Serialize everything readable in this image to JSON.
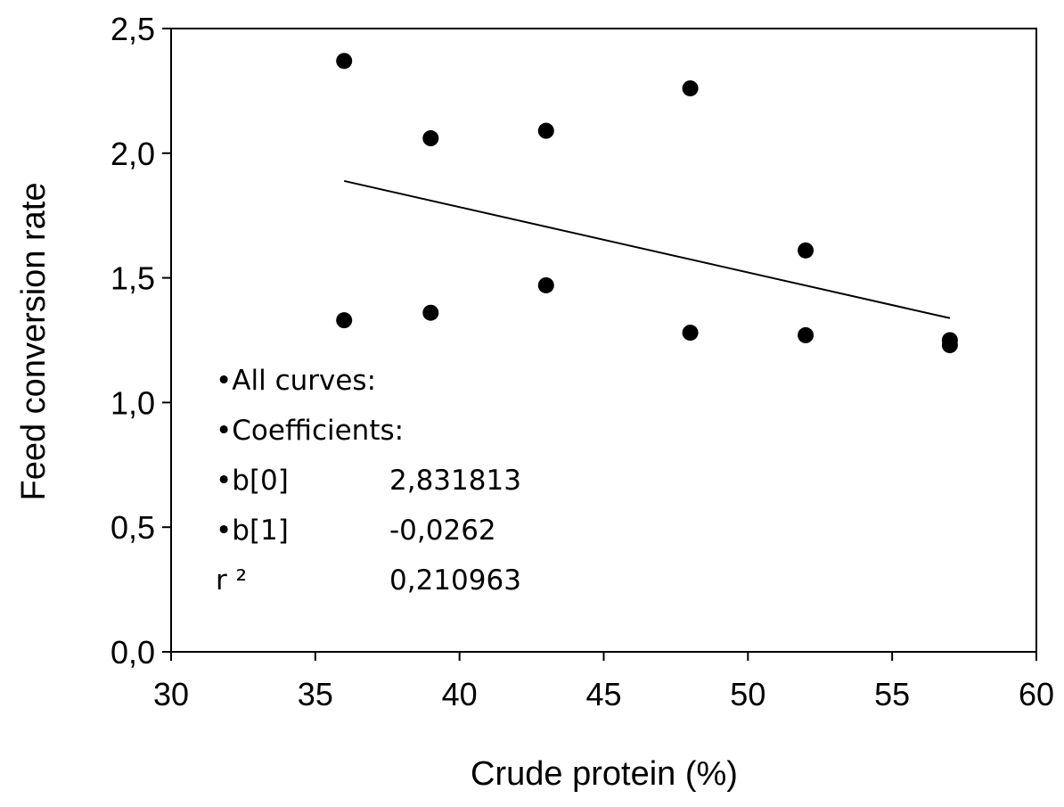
{
  "chart_data": {
    "type": "scatter",
    "xlabel": "Crude protein (%)",
    "ylabel": "Feed conversion rate",
    "xlim": [
      30,
      60
    ],
    "ylim": [
      0.0,
      2.5
    ],
    "x_ticks": [
      "30",
      "35",
      "40",
      "45",
      "50",
      "55",
      "60"
    ],
    "y_ticks": [
      "0,0",
      "0,5",
      "1,0",
      "1,5",
      "2,0",
      "2,5"
    ],
    "grid": false,
    "series": [
      {
        "points": [
          {
            "x": 36,
            "y": 2.37
          },
          {
            "x": 36,
            "y": 1.33
          },
          {
            "x": 39,
            "y": 2.06
          },
          {
            "x": 39,
            "y": 1.36
          },
          {
            "x": 43,
            "y": 2.09
          },
          {
            "x": 43,
            "y": 1.47
          },
          {
            "x": 48,
            "y": 2.26
          },
          {
            "x": 48,
            "y": 1.28
          },
          {
            "x": 52,
            "y": 1.61
          },
          {
            "x": 52,
            "y": 1.27
          },
          {
            "x": 57,
            "y": 1.25
          },
          {
            "x": 57,
            "y": 1.23
          }
        ]
      }
    ],
    "trendline": {
      "x_start": 36,
      "x_end": 57,
      "intercept": 2.831813,
      "slope": -0.0262
    },
    "annotations": [
      {
        "label": "•All curves:",
        "value": ""
      },
      {
        "label": "•Coefficients:",
        "value": ""
      },
      {
        "label": "•b[0]",
        "value": "2,831813"
      },
      {
        "label": "•b[1]",
        "value": "-0,0262"
      },
      {
        "label": "r ²",
        "value": "0,210963"
      }
    ]
  }
}
